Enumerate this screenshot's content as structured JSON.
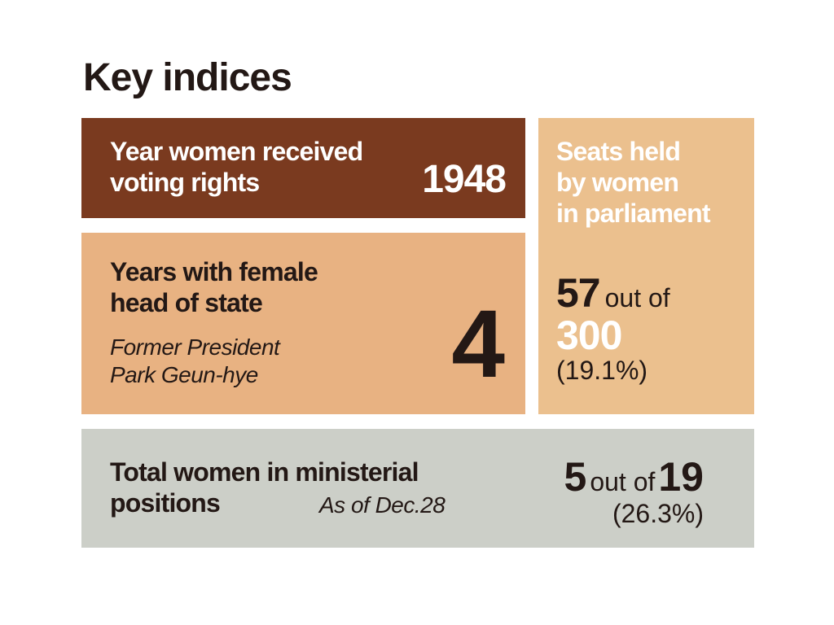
{
  "title": "Key indices",
  "voting": {
    "label": "Year women received\nvoting rights",
    "value": "1948"
  },
  "head_of_state": {
    "label": "Years with female\nhead of state",
    "note": "Former President\nPark Geun-hye",
    "value": "4"
  },
  "parliament": {
    "label": "Seats held\nby women\nin parliament",
    "held": "57",
    "out_of": "out of",
    "total": "300",
    "percent": "(19.1%)"
  },
  "ministerial": {
    "label": "Total women in ministerial\npositions",
    "as_of": "As of Dec.28",
    "held": "5",
    "out_of": "out of",
    "total": "19",
    "percent": "(26.3%)"
  },
  "colors": {
    "voting_bg": "#7a3a1f",
    "head_bg": "#e8b282",
    "seats_bg": "#ebc08e",
    "ministerial_bg": "#cccfc8",
    "text_dark": "#231815"
  },
  "chart_data": {
    "type": "table",
    "title": "Key indices",
    "rows": [
      {
        "label": "Year women received voting rights",
        "value": 1948
      },
      {
        "label": "Years with female head of state",
        "value": 4,
        "note": "Former President Park Geun-hye"
      },
      {
        "label": "Seats held by women in parliament",
        "value": 57,
        "total": 300,
        "percent": 19.1
      },
      {
        "label": "Total women in ministerial positions",
        "value": 5,
        "total": 19,
        "percent": 26.3,
        "note": "As of Dec.28"
      }
    ]
  }
}
